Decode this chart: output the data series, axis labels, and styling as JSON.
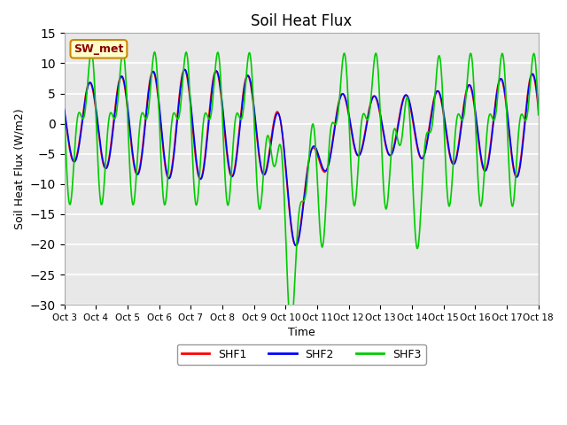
{
  "title": "Soil Heat Flux",
  "xlabel": "Time",
  "ylabel": "Soil Heat Flux (W/m2)",
  "ylim": [
    -30,
    15
  ],
  "yticks": [
    -30,
    -25,
    -20,
    -15,
    -10,
    -5,
    0,
    5,
    10,
    15
  ],
  "annotation_text": "SW_met",
  "annotation_bg": "#FFFFCC",
  "annotation_border": "#CC8800",
  "legend_labels": [
    "SHF1",
    "SHF2",
    "SHF3"
  ],
  "line_colors": [
    "#FF0000",
    "#0000FF",
    "#00CC00"
  ],
  "bg_color": "#FFFFFF",
  "plot_bg_color": "#E8E8E8",
  "grid_color": "#FFFFFF",
  "n_days": 15,
  "start_day": 3,
  "pts_per_day": 48
}
